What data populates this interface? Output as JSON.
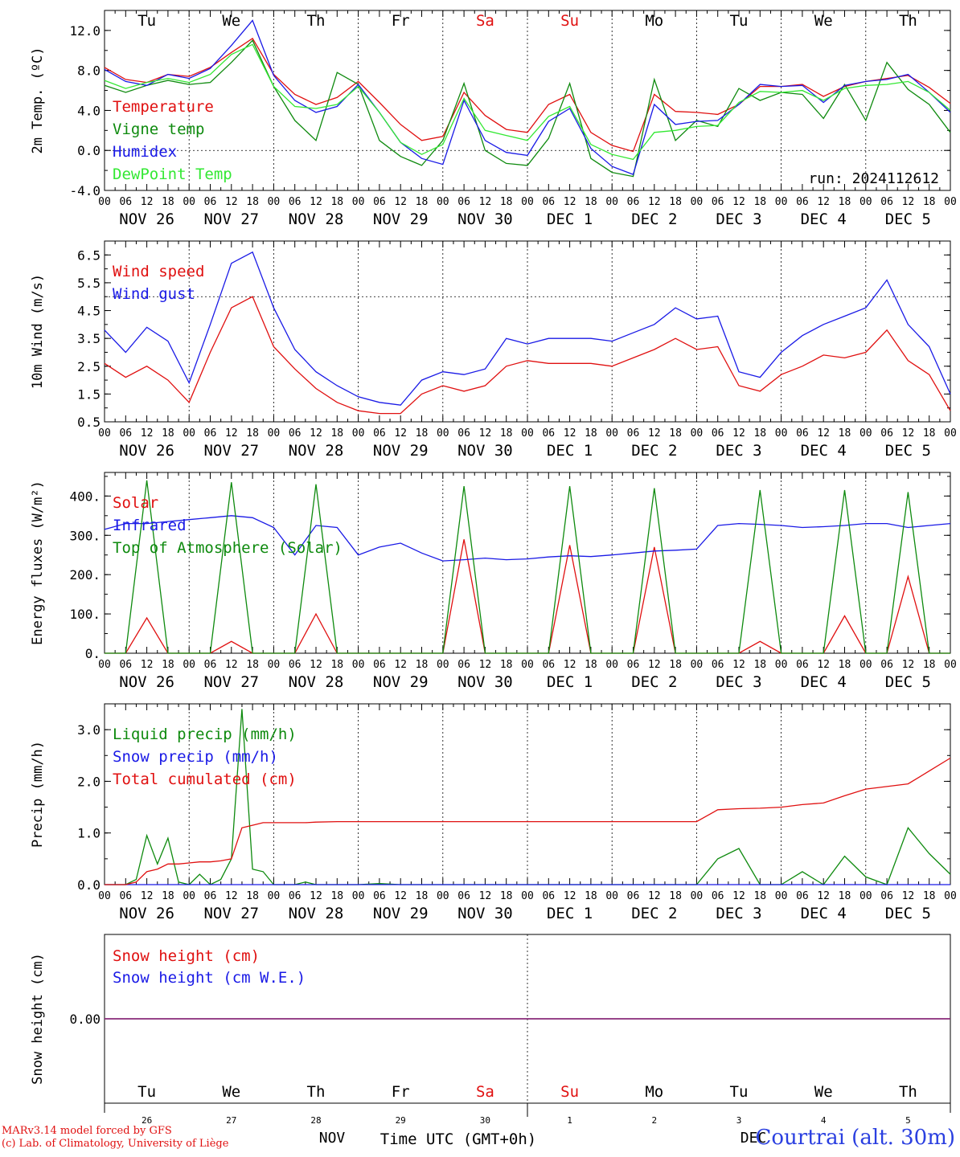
{
  "colors": {
    "red": "#e01010",
    "darkgreen": "#0e8a0e",
    "blue": "#1a1ae6",
    "lightgreen": "#33e833",
    "black": "#000000",
    "purple": "#7a2e8a"
  },
  "day_labels": [
    "Tu",
    "We",
    "Th",
    "Fr",
    "Sa",
    "Su",
    "Mo",
    "Tu",
    "We",
    "Th"
  ],
  "weekend_days": [
    4,
    5
  ],
  "date_labels": [
    "NOV 26",
    "NOV 27",
    "NOV 28",
    "NOV 29",
    "NOV 30",
    "DEC  1",
    "DEC  2",
    "DEC  3",
    "DEC  4",
    "DEC  5"
  ],
  "hour_labels": [
    "00",
    "06",
    "12",
    "18"
  ],
  "end_hour_label": "00",
  "day_numbers": [
    "26",
    "27",
    "28",
    "29",
    "30",
    "1",
    "2",
    "3",
    "4",
    "5"
  ],
  "month_labels": [
    "NOV",
    "DEC"
  ],
  "xlabel": "Time UTC (GMT+0h)",
  "run_label": "run: 2024112612",
  "credit_line1": "MARv3.14 model forced by GFS",
  "credit_line2": "(c) Lab. of Climatology, University of Liège",
  "station": "Courtrai (alt. 30m)",
  "chart_data": [
    {
      "type": "line",
      "ylabel": "2m Temp. (ºC)",
      "ylim": [
        -4,
        14
      ],
      "yticks": [
        "-4.0",
        "0.0",
        "4.0",
        "8.0",
        "12.0"
      ],
      "ytick_values": [
        -4,
        0,
        4,
        8,
        12
      ],
      "reference_line": 0,
      "x_hours": [
        0,
        6,
        12,
        18,
        24,
        30,
        36,
        42,
        48,
        54,
        60,
        66,
        72,
        78,
        84,
        90,
        96,
        102,
        108,
        114,
        120,
        126,
        132,
        138,
        144,
        150,
        156,
        162,
        168,
        174,
        180,
        186,
        192,
        198,
        204,
        210,
        216,
        222,
        228,
        234,
        240
      ],
      "series": [
        {
          "name": "Temperature",
          "color": "#e01010",
          "values": [
            8.3,
            7.1,
            6.8,
            7.6,
            7.4,
            8.3,
            9.8,
            11.2,
            7.6,
            5.6,
            4.6,
            5.3,
            6.9,
            4.8,
            2.6,
            1.0,
            1.4,
            5.8,
            3.5,
            2.1,
            1.8,
            4.6,
            5.6,
            1.8,
            0.5,
            -0.1,
            5.6,
            3.9,
            3.8,
            3.6,
            4.6,
            6.4,
            6.4,
            6.6,
            5.4,
            6.4,
            6.9,
            7.2,
            7.5,
            6.3,
            4.7
          ]
        },
        {
          "name": "Vigne temp",
          "color": "#0e8a0e",
          "values": [
            6.5,
            5.8,
            6.5,
            7.0,
            6.6,
            6.8,
            8.8,
            11.0,
            6.4,
            3.0,
            1.0,
            7.8,
            6.6,
            1.0,
            -0.6,
            -1.5,
            1.0,
            6.7,
            0.0,
            -1.3,
            -1.5,
            1.2,
            6.7,
            -0.8,
            -2.2,
            -2.6,
            7.1,
            1.0,
            3.0,
            2.4,
            6.2,
            5.0,
            5.8,
            5.6,
            3.2,
            6.6,
            3.0,
            8.8,
            6.1,
            4.6,
            1.8
          ]
        },
        {
          "name": "Humidex",
          "color": "#1a1ae6",
          "values": [
            8.1,
            6.9,
            6.5,
            7.6,
            7.2,
            8.2,
            10.5,
            13.0,
            7.5,
            5.0,
            3.8,
            4.4,
            6.6,
            3.8,
            0.8,
            -0.8,
            -1.4,
            5.0,
            1.0,
            -0.2,
            -0.5,
            2.9,
            4.2,
            0.2,
            -1.6,
            -2.4,
            4.6,
            2.6,
            2.9,
            3.0,
            4.6,
            6.6,
            6.4,
            6.5,
            4.8,
            6.5,
            6.9,
            7.1,
            7.6,
            5.8,
            3.8
          ]
        },
        {
          "name": "DewPoint Temp",
          "color": "#33e833",
          "values": [
            7.0,
            6.2,
            6.8,
            7.2,
            6.8,
            7.6,
            9.6,
            10.6,
            6.4,
            4.4,
            4.2,
            4.6,
            6.4,
            3.8,
            0.8,
            -0.4,
            0.6,
            5.2,
            2.0,
            1.5,
            1.0,
            3.4,
            4.4,
            0.6,
            -0.4,
            -0.9,
            1.8,
            2.0,
            2.4,
            2.5,
            4.8,
            5.9,
            5.8,
            6.0,
            5.0,
            6.2,
            6.5,
            6.6,
            6.9,
            5.8,
            4.0
          ]
        }
      ]
    },
    {
      "type": "line",
      "ylabel": "10m Wind (m/s)",
      "ylim": [
        0.5,
        7.0
      ],
      "yticks": [
        "0.5",
        "1.5",
        "2.5",
        "3.5",
        "4.5",
        "5.5",
        "6.5"
      ],
      "ytick_values": [
        0.5,
        1.5,
        2.5,
        3.5,
        4.5,
        5.5,
        6.5
      ],
      "reference_line": 5,
      "x_hours": [
        0,
        6,
        12,
        18,
        24,
        30,
        36,
        42,
        48,
        54,
        60,
        66,
        72,
        78,
        84,
        90,
        96,
        102,
        108,
        114,
        120,
        126,
        132,
        138,
        144,
        150,
        156,
        162,
        168,
        174,
        180,
        186,
        192,
        198,
        204,
        210,
        216,
        222,
        228,
        234,
        240
      ],
      "series": [
        {
          "name": "Wind speed",
          "color": "#e01010",
          "values": [
            2.6,
            2.1,
            2.5,
            2.0,
            1.2,
            3.0,
            4.6,
            5.0,
            3.2,
            2.4,
            1.7,
            1.2,
            0.9,
            0.8,
            0.8,
            1.5,
            1.8,
            1.6,
            1.8,
            2.5,
            2.7,
            2.6,
            2.6,
            2.6,
            2.5,
            2.8,
            3.1,
            3.5,
            3.1,
            3.2,
            1.8,
            1.6,
            2.2,
            2.5,
            2.9,
            2.8,
            3.0,
            3.8,
            2.7,
            2.2,
            0.9
          ]
        },
        {
          "name": "Wind gust",
          "color": "#1a1ae6",
          "values": [
            3.8,
            3.0,
            3.9,
            3.4,
            1.9,
            4.0,
            6.2,
            6.6,
            4.6,
            3.1,
            2.3,
            1.8,
            1.4,
            1.2,
            1.1,
            2.0,
            2.3,
            2.2,
            2.4,
            3.5,
            3.3,
            3.5,
            3.5,
            3.5,
            3.4,
            3.7,
            4.0,
            4.6,
            4.2,
            4.3,
            2.3,
            2.1,
            3.0,
            3.6,
            4.0,
            4.3,
            4.6,
            5.6,
            4.0,
            3.2,
            1.5
          ]
        }
      ]
    },
    {
      "type": "line",
      "ylabel": "Energy fluxes (W/m²)",
      "ylim": [
        0,
        460
      ],
      "yticks": [
        "0.",
        "100.",
        "200.",
        "300.",
        "400."
      ],
      "ytick_values": [
        0,
        100,
        200,
        300,
        400
      ],
      "x_hours": [
        0,
        6,
        12,
        18,
        24,
        30,
        36,
        42,
        48,
        54,
        60,
        66,
        72,
        78,
        84,
        90,
        96,
        102,
        108,
        114,
        120,
        126,
        132,
        138,
        144,
        150,
        156,
        162,
        168,
        174,
        180,
        186,
        192,
        198,
        204,
        210,
        216,
        222,
        228,
        234,
        240
      ],
      "series": [
        {
          "name": "Solar",
          "color": "#e01010",
          "values": [
            0,
            0,
            90,
            0,
            0,
            0,
            30,
            0,
            0,
            0,
            100,
            0,
            0,
            0,
            0,
            0,
            0,
            290,
            0,
            0,
            0,
            0,
            275,
            0,
            0,
            0,
            270,
            0,
            0,
            0,
            0,
            30,
            0,
            0,
            0,
            95,
            0,
            0,
            195,
            0,
            0
          ]
        },
        {
          "name": "Infrared",
          "color": "#1a1ae6",
          "values": [
            315,
            330,
            330,
            335,
            340,
            345,
            350,
            345,
            320,
            250,
            325,
            320,
            250,
            270,
            280,
            255,
            235,
            238,
            242,
            238,
            240,
            245,
            248,
            246,
            250,
            255,
            260,
            262,
            265,
            325,
            330,
            328,
            325,
            320,
            322,
            325,
            330,
            330,
            320,
            325,
            330
          ]
        },
        {
          "name": "Top of Atmosphere (Solar)",
          "color": "#0e8a0e",
          "values": [
            0,
            0,
            440,
            0,
            0,
            0,
            435,
            0,
            0,
            0,
            430,
            0,
            0,
            0,
            0,
            0,
            0,
            425,
            0,
            0,
            0,
            0,
            425,
            0,
            0,
            0,
            420,
            0,
            0,
            0,
            0,
            415,
            0,
            0,
            0,
            415,
            0,
            0,
            410,
            0,
            0
          ]
        }
      ]
    },
    {
      "type": "line",
      "ylabel": "Precip (mm/h)",
      "ylim": [
        0,
        3.5
      ],
      "yticks": [
        "0.0",
        "1.0",
        "2.0",
        "3.0"
      ],
      "ytick_values": [
        0,
        1,
        2,
        3
      ],
      "x_hours": [
        0,
        6,
        9,
        12,
        15,
        18,
        21,
        24,
        27,
        30,
        33,
        36,
        39,
        42,
        45,
        48,
        51,
        54,
        57,
        60,
        66,
        72,
        78,
        84,
        90,
        96,
        102,
        108,
        114,
        120,
        126,
        132,
        138,
        144,
        150,
        156,
        162,
        168,
        174,
        180,
        186,
        192,
        198,
        204,
        210,
        216,
        222,
        228,
        234,
        240
      ],
      "series": [
        {
          "name": "Liquid precip (mm/h)",
          "color": "#0e8a0e",
          "values": [
            0,
            0,
            0.1,
            0.95,
            0.4,
            0.9,
            0.05,
            0,
            0.2,
            0,
            0.1,
            0.5,
            3.4,
            0.3,
            0.25,
            0,
            0,
            0,
            0.05,
            0,
            0,
            0,
            0.02,
            0,
            0,
            0,
            0,
            0,
            0,
            0,
            0,
            0,
            0,
            0,
            0,
            0,
            0,
            0,
            0.5,
            0.7,
            0,
            0,
            0.25,
            0,
            0.55,
            0.15,
            0,
            1.1,
            0.6,
            0.2
          ]
        },
        {
          "name": "Snow precip (mm/h)",
          "color": "#1a1ae6",
          "values": [
            0,
            0,
            0,
            0,
            0,
            0,
            0,
            0,
            0,
            0,
            0,
            0,
            0,
            0,
            0,
            0,
            0,
            0,
            0,
            0,
            0,
            0,
            0,
            0,
            0,
            0,
            0,
            0,
            0,
            0,
            0,
            0,
            0,
            0,
            0,
            0,
            0,
            0,
            0,
            0,
            0,
            0,
            0,
            0,
            0,
            0,
            0,
            0,
            0,
            0
          ]
        },
        {
          "name": "Total cumulated (cm)",
          "color": "#e01010",
          "values": [
            0,
            0,
            0.05,
            0.25,
            0.3,
            0.4,
            0.4,
            0.42,
            0.44,
            0.44,
            0.46,
            0.5,
            1.1,
            1.15,
            1.2,
            1.2,
            1.2,
            1.2,
            1.2,
            1.21,
            1.22,
            1.22,
            1.22,
            1.22,
            1.22,
            1.22,
            1.22,
            1.22,
            1.22,
            1.22,
            1.22,
            1.22,
            1.22,
            1.22,
            1.22,
            1.22,
            1.22,
            1.22,
            1.45,
            1.47,
            1.48,
            1.5,
            1.55,
            1.58,
            1.72,
            1.85,
            1.9,
            1.95,
            2.2,
            2.45
          ]
        }
      ]
    },
    {
      "type": "line",
      "ylabel": "Snow height (cm)",
      "ylim": [
        -1,
        1
      ],
      "yticks": [
        "0.00"
      ],
      "ytick_values": [
        0
      ],
      "x_hours": [
        0,
        240
      ],
      "series": [
        {
          "name": "Snow height (cm)",
          "color": "#e01010",
          "values": [
            0,
            0
          ]
        },
        {
          "name": "Snow height (cm W.E.)",
          "color": "#1a1ae6",
          "values": [
            0,
            0
          ]
        }
      ]
    }
  ]
}
